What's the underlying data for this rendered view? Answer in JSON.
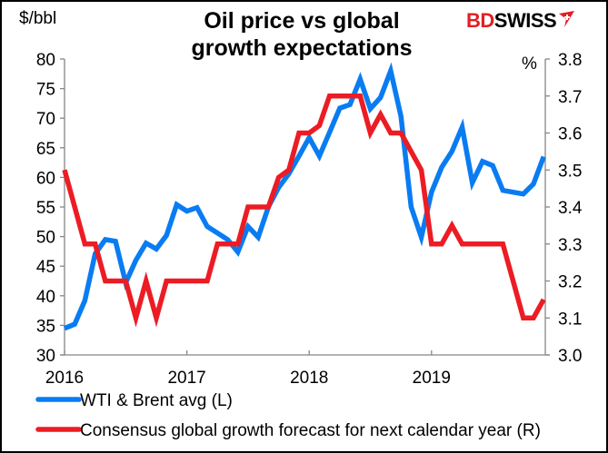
{
  "header": {
    "title_line1": "Oil price vs global",
    "title_line2": "growth expectations",
    "left_unit": "$/bbl",
    "right_unit": "%",
    "logo_part1": "BD",
    "logo_part2": "SWISS",
    "logo_icon": "swiss-cross-flag-icon"
  },
  "colors": {
    "wti_brent": "#0a7cf2",
    "growth_forecast": "#ec1c24",
    "axis": "#868686",
    "brand_red": "#e31e24"
  },
  "chart_data": {
    "type": "line",
    "title": "Oil price vs global growth expectations",
    "xlabel": "",
    "ylabel_left": "$/bbl",
    "ylabel_right": "%",
    "x_start": "2016-01",
    "x_frequency": "monthly",
    "x_ticks": [
      "2016",
      "2017",
      "2018",
      "2019"
    ],
    "xlim_years": [
      2016.0,
      2019.93
    ],
    "ylim_left": [
      30,
      80
    ],
    "yticks_left": [
      "30",
      "35",
      "40",
      "45",
      "50",
      "55",
      "60",
      "65",
      "70",
      "75",
      "80"
    ],
    "ylim_right": [
      3.0,
      3.8
    ],
    "yticks_right": [
      "3.0",
      "3.1",
      "3.2",
      "3.3",
      "3.4",
      "3.5",
      "3.6",
      "3.7",
      "3.8"
    ],
    "grid": false,
    "legend_position": "bottom",
    "series": [
      {
        "name": "WTI & Brent avg (L)",
        "axis": "left",
        "color": "#0a7cf2",
        "values": [
          34.5,
          35.2,
          39.2,
          47.1,
          49.5,
          49.2,
          42.2,
          46.0,
          48.9,
          47.9,
          50.2,
          55.4,
          54.3,
          54.9,
          51.7,
          50.6,
          49.5,
          47.4,
          51.7,
          49.9,
          55.0,
          58.3,
          60.6,
          63.6,
          66.7,
          63.6,
          67.6,
          71.7,
          72.3,
          76.6,
          71.6,
          73.5,
          78.0,
          70.3,
          55.0,
          49.9,
          57.5,
          61.7,
          64.4,
          68.5,
          59.1,
          62.7,
          62.0,
          57.8,
          57.5,
          57.2,
          58.9,
          63.5
        ]
      },
      {
        "name": "Consensus global growth forecast for next calendar year (R)",
        "axis": "right",
        "color": "#ec1c24",
        "values": [
          3.5,
          3.4,
          3.3,
          3.3,
          3.2,
          3.2,
          3.2,
          3.1,
          3.2,
          3.1,
          3.2,
          3.2,
          3.2,
          3.2,
          3.2,
          3.3,
          3.3,
          3.3,
          3.4,
          3.4,
          3.4,
          3.48,
          3.5,
          3.6,
          3.6,
          3.62,
          3.7,
          3.7,
          3.7,
          3.7,
          3.6,
          3.65,
          3.6,
          3.6,
          3.55,
          3.5,
          3.3,
          3.3,
          3.35,
          3.3,
          3.3,
          3.3,
          3.3,
          3.3,
          3.2,
          3.1,
          3.1,
          3.15
        ]
      }
    ]
  }
}
